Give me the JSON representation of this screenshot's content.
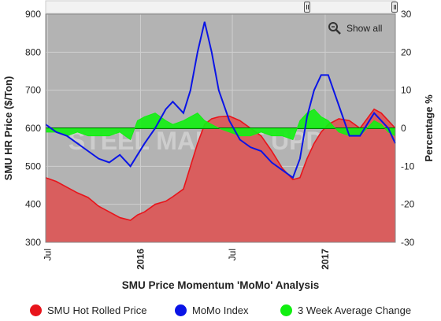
{
  "chart_data": {
    "type": "line",
    "title": "SMU Price Momentum 'MoMo' Analysis",
    "xlabel": "SMU Price Momentum 'MoMo' Analysis",
    "ylabel_left": "SMU HR Price ($/Ton)",
    "ylabel_right": "Percentage %",
    "y_left_range": [
      300,
      900
    ],
    "y_left_ticks": [
      "300",
      "400",
      "500",
      "600",
      "700",
      "800",
      "900"
    ],
    "y_right_range": [
      -30,
      30
    ],
    "y_right_ticks": [
      "-30",
      "-20",
      "-10",
      "0",
      "10",
      "20",
      "30"
    ],
    "x_tick_labels": [
      "Jul",
      "2016",
      "Jul",
      "2017"
    ],
    "x_range": [
      "2015-06-27",
      "2017-05-20"
    ],
    "grid": true,
    "watermark": "STEEL MARKET UPDATE",
    "legend_position": "bottom",
    "series": [
      {
        "name": "SMU Hot Rolled Price",
        "axis": "left",
        "color": "#e8141b",
        "fill": "#d95e5e",
        "x": [
          "2015-06-27",
          "2015-07-18",
          "2015-08-08",
          "2015-08-29",
          "2015-09-19",
          "2015-10-10",
          "2015-10-31",
          "2015-11-21",
          "2015-12-12",
          "2015-12-26",
          "2016-01-09",
          "2016-01-30",
          "2016-02-20",
          "2016-03-05",
          "2016-03-26",
          "2016-04-09",
          "2016-04-23",
          "2016-05-07",
          "2016-05-21",
          "2016-06-04",
          "2016-06-25",
          "2016-07-16",
          "2016-08-06",
          "2016-08-27",
          "2016-09-17",
          "2016-10-08",
          "2016-10-29",
          "2016-11-12",
          "2016-11-26",
          "2016-12-10",
          "2016-12-24",
          "2017-01-07",
          "2017-01-28",
          "2017-02-18",
          "2017-03-11",
          "2017-03-25",
          "2017-04-08",
          "2017-04-22",
          "2017-05-06",
          "2017-05-20"
        ],
        "values": [
          470,
          460,
          445,
          430,
          418,
          395,
          380,
          365,
          358,
          372,
          380,
          400,
          408,
          420,
          440,
          500,
          560,
          610,
          625,
          630,
          632,
          620,
          600,
          580,
          540,
          495,
          465,
          470,
          520,
          560,
          590,
          610,
          625,
          620,
          600,
          625,
          650,
          640,
          620,
          600
        ]
      },
      {
        "name": "MoMo Index",
        "axis": "right",
        "color": "#0a14e6",
        "x": [
          "2015-06-27",
          "2015-07-18",
          "2015-08-08",
          "2015-08-29",
          "2015-09-19",
          "2015-10-10",
          "2015-10-31",
          "2015-11-21",
          "2015-12-12",
          "2015-12-26",
          "2016-01-09",
          "2016-01-30",
          "2016-02-20",
          "2016-03-05",
          "2016-03-26",
          "2016-04-09",
          "2016-04-23",
          "2016-05-07",
          "2016-05-21",
          "2016-06-04",
          "2016-06-25",
          "2016-07-16",
          "2016-08-06",
          "2016-08-27",
          "2016-09-17",
          "2016-10-08",
          "2016-10-29",
          "2016-11-12",
          "2016-11-26",
          "2016-12-10",
          "2016-12-24",
          "2017-01-07",
          "2017-01-28",
          "2017-02-18",
          "2017-03-11",
          "2017-03-25",
          "2017-04-08",
          "2017-04-22",
          "2017-05-06",
          "2017-05-20"
        ],
        "values": [
          1,
          -1,
          -2,
          -4,
          -6,
          -8,
          -9,
          -7,
          -10,
          -7,
          -4,
          0,
          5,
          7,
          4,
          10,
          20,
          28,
          20,
          10,
          2,
          -3,
          -5,
          -6,
          -9,
          -11,
          -13,
          -8,
          3,
          10,
          14,
          14,
          6,
          -2,
          -2,
          1,
          4,
          2,
          0,
          -4
        ]
      },
      {
        "name": "3 Week Average Change",
        "axis": "right",
        "color": "#11ef11",
        "x": [
          "2015-06-27",
          "2015-07-18",
          "2015-08-08",
          "2015-08-29",
          "2015-09-19",
          "2015-10-10",
          "2015-10-31",
          "2015-11-21",
          "2015-12-12",
          "2015-12-26",
          "2016-01-09",
          "2016-01-30",
          "2016-02-20",
          "2016-03-05",
          "2016-03-26",
          "2016-04-09",
          "2016-04-23",
          "2016-05-07",
          "2016-05-21",
          "2016-06-04",
          "2016-06-25",
          "2016-07-16",
          "2016-08-06",
          "2016-08-27",
          "2016-09-17",
          "2016-10-08",
          "2016-10-29",
          "2016-11-12",
          "2016-11-26",
          "2016-12-10",
          "2016-12-24",
          "2017-01-07",
          "2017-01-28",
          "2017-02-18",
          "2017-03-11",
          "2017-03-25",
          "2017-04-08",
          "2017-04-22",
          "2017-05-06",
          "2017-05-20"
        ],
        "values": [
          -1,
          -1,
          -2,
          -1,
          -2,
          -2,
          -2,
          -1,
          -3,
          2,
          3,
          4,
          2,
          1,
          2,
          3,
          4,
          2,
          1,
          0,
          -1,
          -2,
          -2,
          -1,
          -2,
          -2,
          -3,
          2,
          4,
          5,
          3,
          2,
          -1,
          -2,
          -2,
          0,
          2,
          1,
          -1,
          -2
        ]
      }
    ]
  },
  "legend": [
    {
      "label": "SMU Hot Rolled Price",
      "color": "#e8141b"
    },
    {
      "label": "MoMo Index",
      "color": "#0a14e6"
    },
    {
      "label": "3 Week Average Change",
      "color": "#11ef11"
    }
  ],
  "controls": {
    "show_all_label": "Show all"
  }
}
